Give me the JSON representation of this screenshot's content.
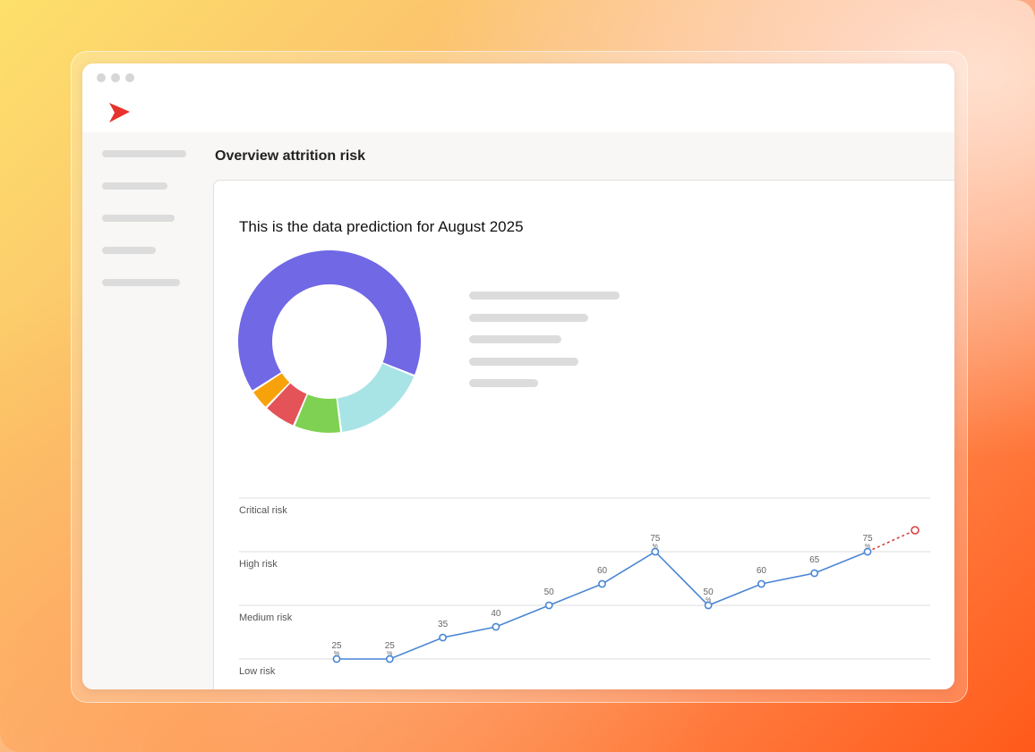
{
  "colors": {
    "accent": "#e8322d",
    "line": "#4a86d4",
    "forecast": "#d9403d"
  },
  "app": {
    "logo_icon": "chevron-right-icon"
  },
  "header": {
    "title": "Overview attrition risk"
  },
  "card": {
    "heading": "This is the data prediction for August 2025"
  },
  "chart_data": [
    {
      "type": "pie",
      "title": "",
      "slices": [
        {
          "value": 62,
          "color": "#7068e4"
        },
        {
          "value": 16,
          "color": "#a8e4e6"
        },
        {
          "value": 8,
          "color": "#7fd154"
        },
        {
          "value": 5.5,
          "color": "#e35357"
        },
        {
          "value": 3.5,
          "color": "#f8a20b"
        }
      ]
    },
    {
      "type": "line",
      "title": "",
      "y_levels": [
        "Critical risk",
        "High risk",
        "Medium risk",
        "Low risk"
      ],
      "ylim": [
        0,
        100
      ],
      "series": [
        {
          "values": [
            25,
            25,
            35,
            40,
            50,
            60,
            75,
            50,
            60,
            65,
            75
          ],
          "labels": [
            "25 %",
            "25 %",
            "35",
            "40",
            "50",
            "60",
            "75 %",
            "50 %",
            "60",
            "65",
            "75 %"
          ]
        }
      ],
      "forecast": {
        "value": 85
      },
      "grid": true
    }
  ]
}
